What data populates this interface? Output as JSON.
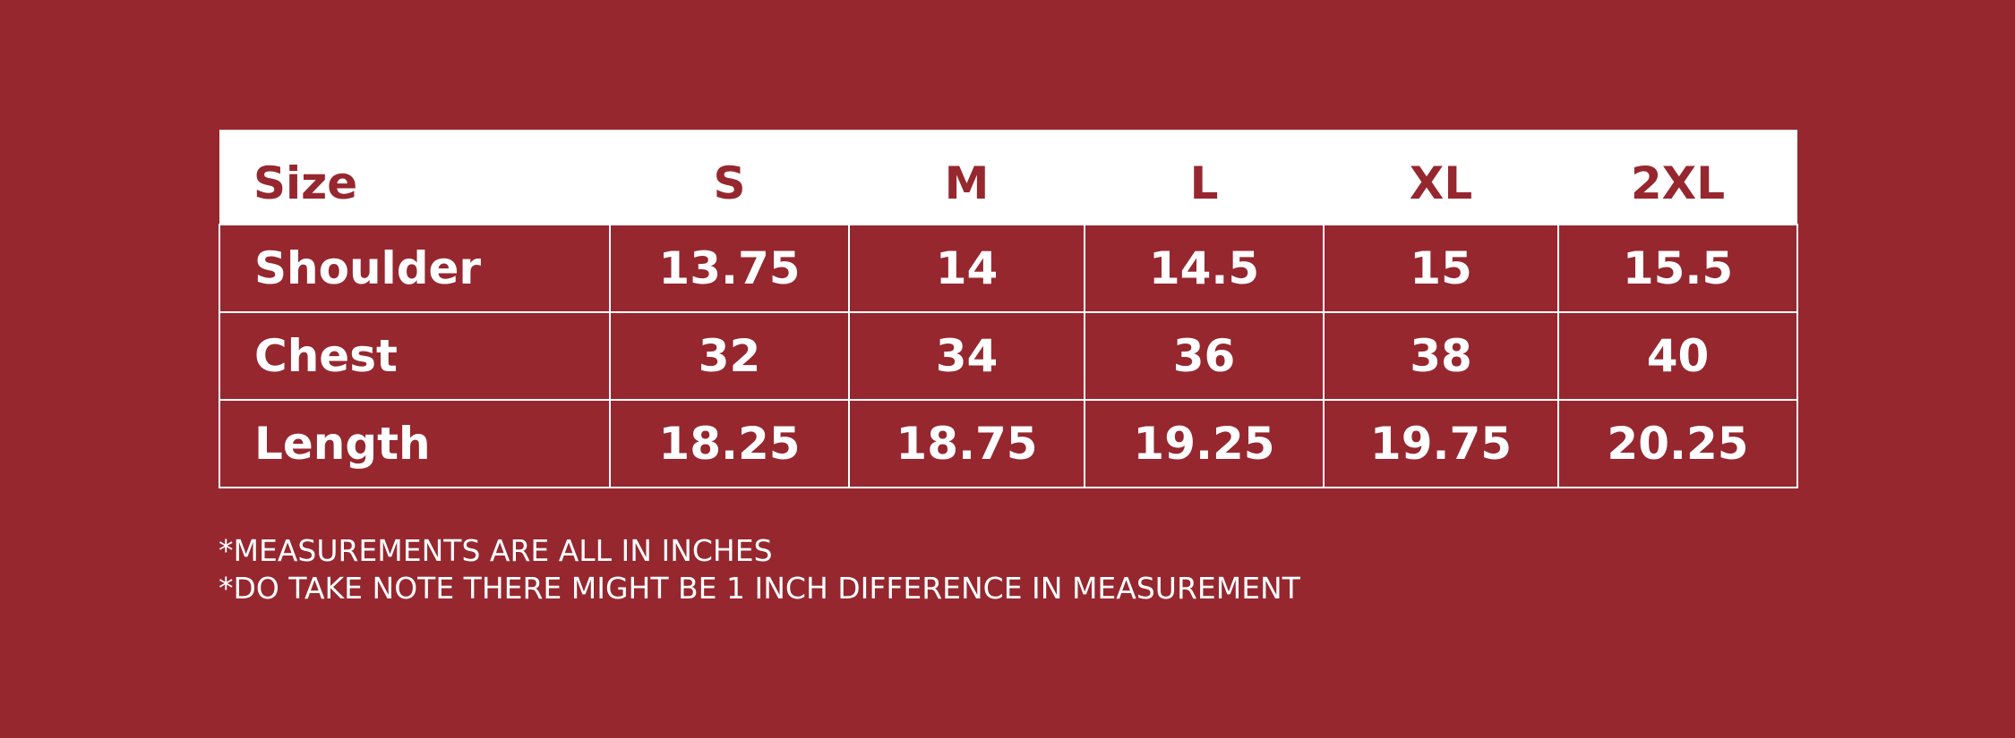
{
  "table": {
    "header": [
      "Size",
      "S",
      "M",
      "L",
      "XL",
      "2XL"
    ],
    "rows": [
      [
        "Shoulder",
        13.75,
        14,
        14.5,
        15,
        15.5
      ],
      [
        "Chest",
        32,
        34,
        36,
        38,
        40
      ],
      [
        "Length",
        18.25,
        18.75,
        19.25,
        19.75,
        20.25
      ]
    ]
  },
  "notes": [
    "*MEASUREMENTS ARE ALL IN INCHES",
    "*DO TAKE NOTE THERE MIGHT BE 1 INCH DIFFERENCE IN MEASUREMENT"
  ]
}
